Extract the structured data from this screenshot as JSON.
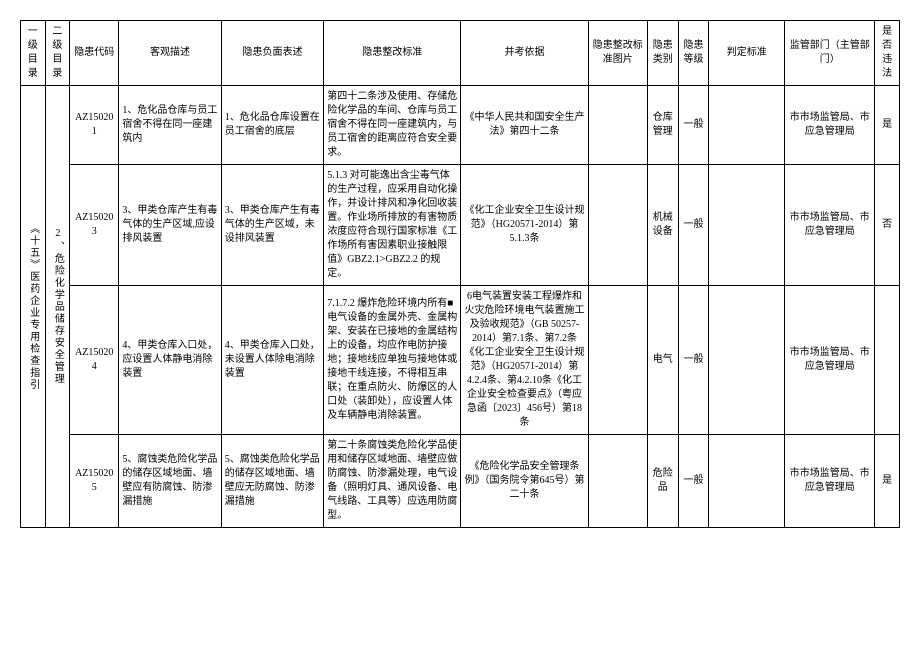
{
  "headers": {
    "level1": "一级目录",
    "level2": "二 级目录",
    "code": "隐患代码",
    "objective": "客观描述",
    "negative": "隐患负面表述",
    "standard": "隐患整改标准",
    "basis": "并考依据",
    "image": "隐患整改标准图片",
    "category": "隐患类别",
    "level": "隐患等级",
    "judge": "判定标准",
    "dept": "监管部门（主管部门）",
    "illegal": "是否违法"
  },
  "level1_label": "《十五》医药企业专用检查指引",
  "level2_label": "2、危险化学品储存安全管理",
  "rows": [
    {
      "code": "AZ150201",
      "objective": "1、危化品仓库与员工宿舍不得在同一座建筑内",
      "negative": "1、危化品仓库设置在员工宿舍的底层",
      "standard": "第四十二条涉及使用、存储危险化学品的车间、仓库与员工宿舍不得在同一座建筑内，与员工宿舍的距离应符合安全要求。",
      "basis": "《中华人民共和国安全生产法》第四十二条",
      "category": "仓库管理",
      "level": "一般",
      "dept": "市市场监管局、市应急管理局",
      "illegal": "是"
    },
    {
      "code": "AZ150203",
      "objective": "3、甲类仓库产生有毒气体的生产区域,应设排风装置",
      "negative": "3、甲类仓库产生有毒气体的生产区域，未设排风装置",
      "standard": "5.1.3 对可能逸出含尘毒气体的生产过程，应采用自动化操作，并设计排风和净化回收装置。作业场所排放的有害物质浓度应符合现行国家标准《工作场所有害因素职业接触限值》GBZ2.1>GBZ2.2 的规定。",
      "basis": "《化工企业安全卫生设计规范》（HG20571-2014）第5.1.3条",
      "category": "机械设备",
      "level": "一般",
      "dept": "市市场监管局、市应急管理局",
      "illegal": "否"
    },
    {
      "code": "AZ150204",
      "objective": "4、甲类仓库入口处，应设置人体静电消除装置",
      "negative": "4、甲类仓库入口处，未设置人体除电消除装置",
      "standard": "7.1.7.2 爆炸危险环境内所有■电气设备的金属外壳、金属构架、安装在已接地的金属结构上的设备，均应作电防护接地；接地线应单独与接地体或接地干线连接，不得相互串联；在重点防火、防爆区的人口处（装卸处），应设置人体及车辆静电消除装置。",
      "basis": "6电气装置安装工程爆炸和火灾危险环境电气装置施工及验收规范》（GB 50257-2014）第7.1条、第7.2条《化工企业安全卫生设计规范》（HG20571-2014）第4.2.4条、第4.2.10条《化工企业安全检查要点》（粤应急函〔2023〕456号）第18条",
      "category": "电气",
      "level": "一般",
      "dept": "市市场监管局、市应急管理局",
      "illegal": ""
    },
    {
      "code": "AZ150205",
      "objective": "5、腐蚀类危险化学品的储存区域地面、墙壁应有防腐蚀、防渗漏措施",
      "negative": "5、腐蚀类危险化学品的储存区域地面、墙壁应无防腐蚀、防渗漏措施",
      "standard": "第二十条腐蚀类危险化学品使用和储存区域地面、墙壁应做防腐蚀、防渗漏处理，电气设备（照明灯具、通风设备、电气线路、工具等）应选用防腐型。",
      "basis": "《危险化学品安全管理条例》（国务院令第645号）第二十条",
      "category": "危险品",
      "level": "一般",
      "dept": "市市场监管局、市应急管理局",
      "illegal": "是"
    }
  ]
}
